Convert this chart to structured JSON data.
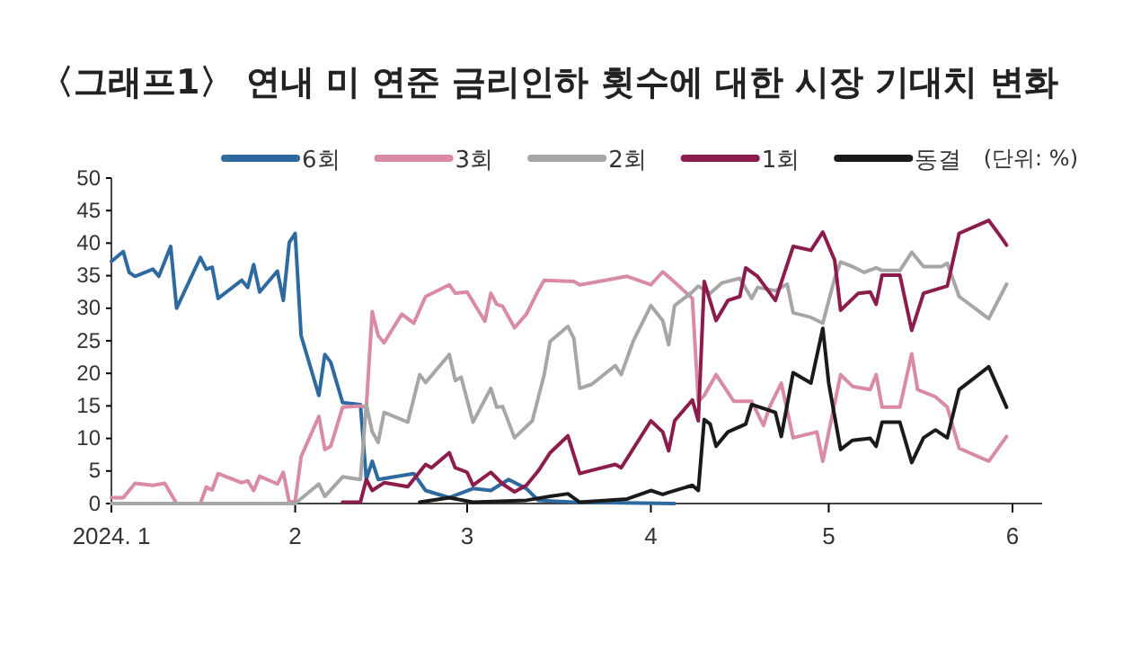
{
  "chart_data": {
    "type": "line",
    "title": "〈그래프1〉 연내 미 연준 금리인하 횟수에 대한 시장 기대치 변화",
    "annotations": [
      "(단위: %)"
    ],
    "xlim": [
      "2024-01-01",
      "2024-06-06"
    ],
    "xticks": [
      {
        "value": "2024-01-01",
        "label": "2024. 1"
      },
      {
        "value": "2024-02-01",
        "label": "2"
      },
      {
        "value": "2024-03-01",
        "label": "3"
      },
      {
        "value": "2024-04-01",
        "label": "4"
      },
      {
        "value": "2024-05-01",
        "label": "5"
      },
      {
        "value": "2024-06-01",
        "label": "6"
      }
    ],
    "ylim": [
      0,
      50
    ],
    "yticks": [
      0,
      5,
      10,
      15,
      20,
      25,
      30,
      35,
      40,
      45,
      50
    ],
    "grid": false,
    "legend": "top",
    "marker": "none",
    "line_style": "solid",
    "series": [
      {
        "name": "6회",
        "color": "#2e6aa0",
        "x": [
          "2024-01-01",
          "2024-01-03",
          "2024-01-04",
          "2024-01-05",
          "2024-01-08",
          "2024-01-09",
          "2024-01-11",
          "2024-01-12",
          "2024-01-16",
          "2024-01-17",
          "2024-01-18",
          "2024-01-19",
          "2024-01-23",
          "2024-01-24",
          "2024-01-25",
          "2024-01-26",
          "2024-01-29",
          "2024-01-30",
          "2024-01-31",
          "2024-02-01",
          "2024-02-02",
          "2024-02-05",
          "2024-02-06",
          "2024-02-07",
          "2024-02-09",
          "2024-02-12",
          "2024-02-13",
          "2024-02-14",
          "2024-02-15",
          "2024-02-21",
          "2024-02-23",
          "2024-02-27",
          "2024-03-02",
          "2024-03-05",
          "2024-03-08",
          "2024-03-11",
          "2024-03-13",
          "2024-03-19",
          "2024-04-05"
        ],
        "values": [
          37.2,
          38.7,
          35.5,
          34.9,
          36,
          34.9,
          39.5,
          30,
          37.8,
          36,
          36.3,
          31.5,
          34.3,
          33.2,
          36.7,
          32.5,
          35.7,
          31.2,
          40.1,
          41.5,
          25.8,
          16.6,
          22.9,
          21.7,
          15.5,
          15.2,
          3.7,
          6.5,
          3.7,
          4.6,
          2,
          0.9,
          2.3,
          2,
          3.7,
          2.3,
          0.5,
          0.2,
          0
        ]
      },
      {
        "name": "3회",
        "color": "#d98aa5",
        "x": [
          "2024-01-01",
          "2024-01-03",
          "2024-01-05",
          "2024-01-08",
          "2024-01-10",
          "2024-01-12",
          "2024-01-16",
          "2024-01-17",
          "2024-01-18",
          "2024-01-19",
          "2024-01-23",
          "2024-01-24",
          "2024-01-25",
          "2024-01-26",
          "2024-01-29",
          "2024-01-30",
          "2024-01-31",
          "2024-02-01",
          "2024-02-02",
          "2024-02-05",
          "2024-02-06",
          "2024-02-07",
          "2024-02-09",
          "2024-02-12",
          "2024-02-13",
          "2024-02-14",
          "2024-02-15",
          "2024-02-16",
          "2024-02-19",
          "2024-02-21",
          "2024-02-23",
          "2024-02-27",
          "2024-02-28",
          "2024-03-01",
          "2024-03-04",
          "2024-03-05",
          "2024-03-06",
          "2024-03-07",
          "2024-03-09",
          "2024-03-11",
          "2024-03-13",
          "2024-03-14",
          "2024-03-19",
          "2024-03-20",
          "2024-03-22",
          "2024-03-28",
          "2024-04-01",
          "2024-04-03",
          "2024-04-05",
          "2024-04-08",
          "2024-04-09",
          "2024-04-10",
          "2024-04-12",
          "2024-04-15",
          "2024-04-18",
          "2024-04-20",
          "2024-04-21",
          "2024-04-23",
          "2024-04-25",
          "2024-04-29",
          "2024-04-30",
          "2024-05-03",
          "2024-05-05",
          "2024-05-08",
          "2024-05-09",
          "2024-05-10",
          "2024-05-13",
          "2024-05-15",
          "2024-05-16",
          "2024-05-19",
          "2024-05-21",
          "2024-05-23",
          "2024-05-28",
          "2024-05-31"
        ],
        "values": [
          0.9,
          0.9,
          3.1,
          2.8,
          3.1,
          0,
          0,
          2.5,
          2.1,
          4.6,
          3.2,
          3.5,
          2,
          4.2,
          3,
          4.8,
          0.2,
          0.3,
          7.2,
          13.4,
          8.3,
          8.8,
          14.8,
          15,
          14.8,
          29.5,
          25.8,
          24.7,
          29.1,
          27.7,
          31.8,
          33.6,
          32.3,
          32.5,
          28,
          32.3,
          30.6,
          30.3,
          27,
          29.1,
          32.7,
          34.3,
          34.1,
          33.6,
          33.9,
          34.9,
          33.6,
          35.6,
          34,
          31.5,
          15.7,
          16.6,
          19.8,
          15.7,
          15.7,
          12,
          14.8,
          18.5,
          10.1,
          11,
          6.5,
          19.8,
          18,
          17.5,
          19.8,
          14.8,
          14.8,
          23,
          17.5,
          16.4,
          14.8,
          8.5,
          6.5,
          10.3
        ]
      },
      {
        "name": "2회",
        "color": "#a6a6a6",
        "x": [
          "2024-01-01",
          "2024-02-01",
          "2024-02-05",
          "2024-02-06",
          "2024-02-09",
          "2024-02-12",
          "2024-02-13",
          "2024-02-14",
          "2024-02-15",
          "2024-02-16",
          "2024-02-20",
          "2024-02-22",
          "2024-02-23",
          "2024-02-27",
          "2024-02-28",
          "2024-02-29",
          "2024-03-02",
          "2024-03-05",
          "2024-03-06",
          "2024-03-07",
          "2024-03-09",
          "2024-03-12",
          "2024-03-14",
          "2024-03-15",
          "2024-03-18",
          "2024-03-19",
          "2024-03-20",
          "2024-03-22",
          "2024-03-26",
          "2024-03-27",
          "2024-03-29",
          "2024-04-01",
          "2024-04-03",
          "2024-04-04",
          "2024-04-05",
          "2024-04-08",
          "2024-04-09",
          "2024-04-11",
          "2024-04-13",
          "2024-04-16",
          "2024-04-18",
          "2024-04-19",
          "2024-04-22",
          "2024-04-24",
          "2024-04-25",
          "2024-04-28",
          "2024-04-30",
          "2024-05-02",
          "2024-05-03",
          "2024-05-05",
          "2024-05-07",
          "2024-05-09",
          "2024-05-10",
          "2024-05-13",
          "2024-05-15",
          "2024-05-17",
          "2024-05-20",
          "2024-05-21",
          "2024-05-23",
          "2024-05-28",
          "2024-05-31"
        ],
        "values": [
          0,
          0,
          3,
          1.1,
          4.1,
          3.7,
          15.2,
          11,
          9.4,
          14,
          12.5,
          19.8,
          18.6,
          22.9,
          18.9,
          19.4,
          12.5,
          17.7,
          14.8,
          14.9,
          10.1,
          12.7,
          19.8,
          24.9,
          27.2,
          25.4,
          17.7,
          18.3,
          21.2,
          19.8,
          24.9,
          30.4,
          28.1,
          24.4,
          30.4,
          32.5,
          33.4,
          32.3,
          33.9,
          34.6,
          31.5,
          33.2,
          32.7,
          33.7,
          29.3,
          28.6,
          27.7,
          34.6,
          37.1,
          36.4,
          35.5,
          36.2,
          35.8,
          35.8,
          38.6,
          36.4,
          36.4,
          36.9,
          31.8,
          28.4,
          33.7
        ]
      },
      {
        "name": "1회",
        "color": "#8c1c4b",
        "x": [
          "2024-02-09",
          "2024-02-12",
          "2024-02-13",
          "2024-02-14",
          "2024-02-16",
          "2024-02-20",
          "2024-02-23",
          "2024-02-24",
          "2024-02-27",
          "2024-02-28",
          "2024-03-01",
          "2024-03-02",
          "2024-03-05",
          "2024-03-07",
          "2024-03-09",
          "2024-03-11",
          "2024-03-13",
          "2024-03-15",
          "2024-03-18",
          "2024-03-20",
          "2024-03-22",
          "2024-03-26",
          "2024-03-27",
          "2024-04-01",
          "2024-04-03",
          "2024-04-04",
          "2024-04-05",
          "2024-04-08",
          "2024-04-09",
          "2024-04-10",
          "2024-04-12",
          "2024-04-14",
          "2024-04-16",
          "2024-04-17",
          "2024-04-19",
          "2024-04-22",
          "2024-04-25",
          "2024-04-28",
          "2024-04-30",
          "2024-05-02",
          "2024-05-03",
          "2024-05-06",
          "2024-05-08",
          "2024-05-09",
          "2024-05-10",
          "2024-05-13",
          "2024-05-15",
          "2024-05-17",
          "2024-05-21",
          "2024-05-23",
          "2024-05-28",
          "2024-05-30",
          "2024-05-31"
        ],
        "values": [
          0.2,
          0.2,
          3.7,
          2,
          3.2,
          2.6,
          6,
          5.5,
          7.8,
          5.5,
          4.8,
          2.8,
          4.8,
          3,
          1.8,
          2.8,
          5,
          7.8,
          10.4,
          4.6,
          5.1,
          6,
          5.5,
          12.7,
          11,
          8.1,
          12.7,
          15.9,
          12.7,
          34.1,
          28.1,
          31.2,
          31.8,
          36.2,
          34.9,
          31.2,
          39.5,
          38.9,
          41.7,
          37.4,
          29.7,
          32.3,
          32.5,
          30.6,
          35.1,
          35.1,
          26.6,
          32.3,
          33.4,
          41.5,
          43.5,
          41,
          39.7
        ]
      },
      {
        "name": "동결",
        "color": "#1a1a1a",
        "x": [
          "2024-02-22",
          "2024-02-27",
          "2024-03-02",
          "2024-03-11",
          "2024-03-15",
          "2024-03-18",
          "2024-03-20",
          "2024-03-28",
          "2024-04-01",
          "2024-04-03",
          "2024-04-04",
          "2024-04-08",
          "2024-04-09",
          "2024-04-10",
          "2024-04-11",
          "2024-04-12",
          "2024-04-14",
          "2024-04-17",
          "2024-04-18",
          "2024-04-22",
          "2024-04-23",
          "2024-04-25",
          "2024-04-28",
          "2024-04-30",
          "2024-05-01",
          "2024-05-03",
          "2024-05-05",
          "2024-05-08",
          "2024-05-09",
          "2024-05-10",
          "2024-05-13",
          "2024-05-15",
          "2024-05-17",
          "2024-05-19",
          "2024-05-21",
          "2024-05-23",
          "2024-05-28",
          "2024-05-31"
        ],
        "values": [
          0.2,
          0.9,
          0.2,
          0.5,
          1.1,
          1.5,
          0.2,
          0.7,
          2,
          1.4,
          1.7,
          2.8,
          2,
          12.9,
          12.2,
          8.8,
          11,
          12.2,
          15.2,
          14,
          10.3,
          20.1,
          18.5,
          26.9,
          18.5,
          8.3,
          9.7,
          10,
          8.8,
          12.5,
          12.5,
          6.3,
          10.1,
          11.3,
          10.1,
          17.5,
          21,
          14.8
        ]
      }
    ]
  }
}
